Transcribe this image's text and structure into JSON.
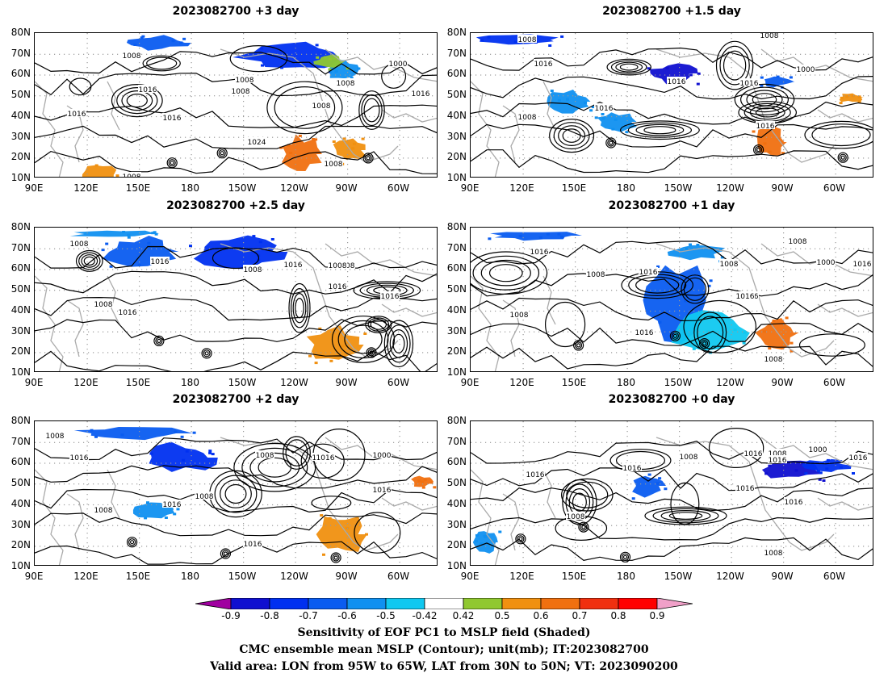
{
  "panels": [
    {
      "title": "2023082700  +3 day",
      "contours": [
        "1008",
        "1016",
        "1016",
        "1008",
        "1008",
        "1016",
        "1000",
        "1008",
        "1008",
        "1024",
        "1016",
        "1008",
        "1008"
      ]
    },
    {
      "title": "2023082700  +1.5 day",
      "contours": [
        "1008",
        "1016",
        "1016",
        "1016",
        "1016",
        "1008",
        "1000",
        "1008",
        "1016"
      ]
    },
    {
      "title": "2023082700  +2.5 day",
      "contours": [
        "1008",
        "1016",
        "1008",
        "1016",
        "1016",
        "1008",
        "1016",
        "1008",
        "1016",
        "1008"
      ]
    },
    {
      "title": "2023082700  +1 day",
      "contours": [
        "1016",
        "1008",
        "1016",
        "1000",
        "1008",
        "1008",
        "1016",
        "1016",
        "1008",
        "1008",
        "1016",
        "1016"
      ]
    },
    {
      "title": "2023082700  +2 day",
      "contours": [
        "1008",
        "1016",
        "1008",
        "1016",
        "1008",
        "1008",
        "1000",
        "1016",
        "1016",
        "1008",
        "1016"
      ]
    },
    {
      "title": "2023082700  +0 day",
      "contours": [
        "1008",
        "1016",
        "1016",
        "1016",
        "1016",
        "1008",
        "1000",
        "1016",
        "1016",
        "1008",
        "1008",
        "1016"
      ]
    }
  ],
  "axes": {
    "lat_ticks": [
      "80N",
      "70N",
      "60N",
      "50N",
      "40N",
      "30N",
      "20N",
      "10N"
    ],
    "lon_ticks": [
      "90E",
      "120E",
      "150E",
      "180",
      "150W",
      "120W",
      "90W",
      "60W"
    ]
  },
  "colorbar": {
    "labels": [
      "-0.9",
      "-0.8",
      "-0.7",
      "-0.6",
      "-0.5",
      "-0.42",
      "0.42",
      "0.5",
      "0.6",
      "0.7",
      "0.8",
      "0.9"
    ],
    "colors": [
      "#a000a0",
      "#1010d0",
      "#0030f0",
      "#0a5cf0",
      "#1090f0",
      "#10c8f0",
      "#ffffff",
      "#90c830",
      "#f09010",
      "#f07010",
      "#f03010",
      "#ff0000",
      "#f0a0c8"
    ]
  },
  "caption": {
    "line1": "Sensitivity of EOF PC1 to MSLP field (Shaded)",
    "line2": "CMC ensemble mean MSLP (Contour); unit(mb); IT:2023082700",
    "line3": "Valid area: LON from 95W to 65W, LAT from 30N to 50N; VT: 2023090200"
  },
  "colors": {
    "negative_shading": "#0a5cf0",
    "positive_shading": "#f09010",
    "coastline": "#aaaaaa",
    "contour": "#000000"
  }
}
